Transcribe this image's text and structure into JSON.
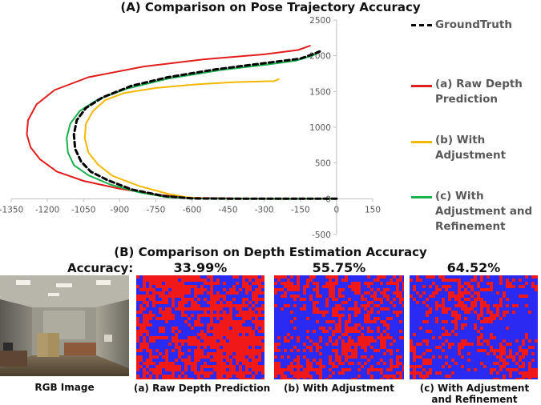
{
  "figure": {
    "title_a": "(A) Comparison on Pose Trajectory Accuracy",
    "title_b": "(B) Comparison on Depth Estimation Accuracy",
    "accuracy_label": "Accuracy:"
  },
  "chart_data": {
    "type": "line",
    "title": "(A) Comparison on Pose Trajectory Accuracy",
    "xlabel": "",
    "ylabel": "",
    "xlim": [
      -1350,
      150
    ],
    "ylim": [
      -500,
      2500
    ],
    "xticks": [
      "-1350",
      "-1200",
      "-1050",
      "-900",
      "-750",
      "-600",
      "-450",
      "-300",
      "-150",
      "0",
      "150"
    ],
    "yticks": [
      "-500",
      "0",
      "500",
      "1000",
      "1500",
      "2000",
      "2500"
    ],
    "grid": false,
    "legend_position": "right",
    "series": [
      {
        "name": "GroundTruth",
        "color": "#000000",
        "dash": true,
        "points": [
          [
            0,
            0
          ],
          [
            -200,
            0
          ],
          [
            -450,
            2
          ],
          [
            -600,
            5
          ],
          [
            -720,
            40
          ],
          [
            -850,
            130
          ],
          [
            -950,
            260
          ],
          [
            -1020,
            380
          ],
          [
            -1060,
            520
          ],
          [
            -1085,
            700
          ],
          [
            -1090,
            900
          ],
          [
            -1078,
            1100
          ],
          [
            -1040,
            1270
          ],
          [
            -970,
            1420
          ],
          [
            -850,
            1580
          ],
          [
            -700,
            1700
          ],
          [
            -500,
            1810
          ],
          [
            -300,
            1895
          ],
          [
            -150,
            1960
          ],
          [
            -100,
            2020
          ],
          [
            -70,
            2060
          ]
        ]
      },
      {
        "name": "(a) Raw Depth Prediction",
        "color": "#e21d1d",
        "dash": false,
        "points": [
          [
            0,
            0
          ],
          [
            -150,
            0
          ],
          [
            -280,
            2
          ],
          [
            -420,
            5
          ],
          [
            -560,
            10
          ],
          [
            -640,
            20
          ],
          [
            -750,
            60
          ],
          [
            -900,
            140
          ],
          [
            -1050,
            250
          ],
          [
            -1160,
            380
          ],
          [
            -1230,
            550
          ],
          [
            -1270,
            720
          ],
          [
            -1285,
            900
          ],
          [
            -1280,
            1100
          ],
          [
            -1245,
            1320
          ],
          [
            -1170,
            1520
          ],
          [
            -1030,
            1700
          ],
          [
            -800,
            1850
          ],
          [
            -550,
            1950
          ],
          [
            -300,
            2020
          ],
          [
            -160,
            2080
          ],
          [
            -110,
            2140
          ]
        ]
      },
      {
        "name": "(b) With Adjustment",
        "color": "#f5b800",
        "dash": false,
        "points": [
          [
            0,
            0
          ],
          [
            -200,
            0
          ],
          [
            -400,
            3
          ],
          [
            -550,
            6
          ],
          [
            -620,
            20
          ],
          [
            -700,
            70
          ],
          [
            -820,
            180
          ],
          [
            -930,
            320
          ],
          [
            -990,
            480
          ],
          [
            -1030,
            650
          ],
          [
            -1045,
            850
          ],
          [
            -1040,
            1050
          ],
          [
            -1010,
            1230
          ],
          [
            -960,
            1380
          ],
          [
            -880,
            1480
          ],
          [
            -750,
            1550
          ],
          [
            -580,
            1600
          ],
          [
            -430,
            1630
          ],
          [
            -320,
            1640
          ],
          [
            -260,
            1645
          ],
          [
            -240,
            1670
          ]
        ]
      },
      {
        "name": "(c) With Adjustment and Refinement",
        "color": "#1ab04e",
        "dash": false,
        "points": [
          [
            0,
            0
          ],
          [
            -200,
            -3
          ],
          [
            -400,
            0
          ],
          [
            -550,
            3
          ],
          [
            -700,
            20
          ],
          [
            -820,
            90
          ],
          [
            -940,
            200
          ],
          [
            -1030,
            330
          ],
          [
            -1090,
            470
          ],
          [
            -1115,
            650
          ],
          [
            -1120,
            850
          ],
          [
            -1105,
            1050
          ],
          [
            -1065,
            1230
          ],
          [
            -990,
            1390
          ],
          [
            -870,
            1540
          ],
          [
            -700,
            1680
          ],
          [
            -480,
            1800
          ],
          [
            -280,
            1880
          ],
          [
            -170,
            1930
          ],
          [
            -110,
            1990
          ],
          [
            -80,
            2030
          ]
        ]
      }
    ]
  },
  "depth_panels": {
    "rgb_caption": "RGB Image",
    "panels": [
      {
        "accuracy": "33.99%",
        "caption": "(a) Raw Depth Prediction",
        "red_ratio": 0.66
      },
      {
        "accuracy": "55.75%",
        "caption": "(b) With Adjustment",
        "red_ratio": 0.44
      },
      {
        "accuracy": "64.52%",
        "caption": "(c) With Adjustment and Refinement",
        "red_ratio": 0.35
      }
    ],
    "colors": {
      "red": "#f01818",
      "blue": "#2a2af2"
    }
  }
}
